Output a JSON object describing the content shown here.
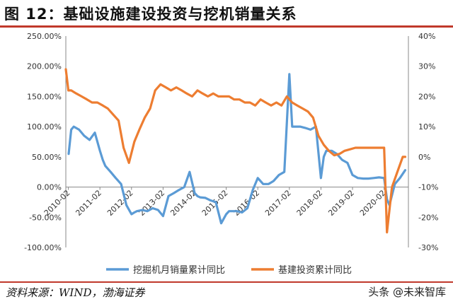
{
  "header": {
    "title": "图 12：基础设施建设投资与挖机销量关系"
  },
  "footer": {
    "source": "资料来源：WIND，渤海证券",
    "watermark": "头条 @未来智库"
  },
  "colors": {
    "accent": "#c0392b",
    "excavator": "#5b9bd5",
    "infra": "#ed7d31",
    "grid": "#d9d9d9"
  },
  "chart_data": {
    "type": "line",
    "title": "",
    "x_ticks": [
      "2010-02",
      "2011-02",
      "2012-02",
      "2013-02",
      "2014-02",
      "2015-02",
      "2016-02",
      "2017-02",
      "2018-02",
      "2019-02",
      "2020-02"
    ],
    "y_left": {
      "ticks": [
        "250.00%",
        "200.00%",
        "150.00%",
        "100.00%",
        "50.00%",
        "0.00%",
        "-50.00%",
        "-100.00%"
      ],
      "range": [
        -100,
        250
      ]
    },
    "y_right": {
      "ticks": [
        "40%",
        "30%",
        "20%",
        "10%",
        "0%",
        "-10%",
        "-20%",
        "-30%"
      ],
      "range": [
        -30,
        40
      ]
    },
    "legend_position": "bottom",
    "series": [
      {
        "name": "挖掘机月销量累计同比",
        "axis": "left",
        "x": [
          2010.09,
          2010.17,
          2010.25,
          2010.42,
          2010.58,
          2010.75,
          2010.92,
          2011.08,
          2011.17,
          2011.25,
          2011.42,
          2011.58,
          2011.75,
          2011.92,
          2012.08,
          2012.17,
          2012.25,
          2012.42,
          2012.58,
          2012.75,
          2012.92,
          2013.08,
          2013.25,
          2013.42,
          2013.58,
          2013.75,
          2013.92,
          2014.08,
          2014.17,
          2014.25,
          2014.42,
          2014.58,
          2014.75,
          2014.92,
          2015.08,
          2015.17,
          2015.25,
          2015.42,
          2015.58,
          2015.75,
          2015.92,
          2016.08,
          2016.25,
          2016.42,
          2016.58,
          2016.75,
          2016.92,
          2017.08,
          2017.17,
          2017.25,
          2017.42,
          2017.58,
          2017.75,
          2017.92,
          2018.08,
          2018.17,
          2018.25,
          2018.42,
          2018.58,
          2018.75,
          2018.92,
          2019.08,
          2019.25,
          2019.42,
          2019.58,
          2019.75,
          2019.92,
          2020.08,
          2020.17,
          2020.25,
          2020.42,
          2020.58,
          2020.75
        ],
        "y": [
          55,
          95,
          100,
          95,
          85,
          78,
          90,
          60,
          45,
          35,
          25,
          15,
          5,
          -30,
          -45,
          -42,
          -40,
          -38,
          -40,
          -35,
          -38,
          -48,
          -15,
          -10,
          -5,
          0,
          25,
          -10,
          -15,
          -17,
          -18,
          -22,
          -25,
          -60,
          -45,
          -40,
          -40,
          -40,
          -42,
          -35,
          -5,
          15,
          5,
          5,
          10,
          20,
          25,
          187,
          100,
          100,
          100,
          98,
          95,
          100,
          15,
          50,
          60,
          60,
          55,
          45,
          40,
          20,
          15,
          14,
          14,
          15,
          16,
          15,
          -20,
          -30,
          5,
          15,
          28
        ]
      },
      {
        "name": "基建投资累计同比",
        "axis": "right",
        "x": [
          2010.0,
          2010.08,
          2010.17,
          2010.33,
          2010.5,
          2010.67,
          2010.83,
          2011.0,
          2011.17,
          2011.33,
          2011.5,
          2011.67,
          2011.83,
          2012.0,
          2012.17,
          2012.33,
          2012.5,
          2012.67,
          2012.83,
          2013.0,
          2013.17,
          2013.33,
          2013.5,
          2013.67,
          2013.83,
          2014.0,
          2014.17,
          2014.33,
          2014.5,
          2014.67,
          2014.83,
          2015.0,
          2015.17,
          2015.33,
          2015.5,
          2015.67,
          2015.83,
          2016.0,
          2016.17,
          2016.33,
          2016.5,
          2016.67,
          2016.83,
          2017.0,
          2017.17,
          2017.33,
          2017.5,
          2017.67,
          2017.83,
          2018.0,
          2018.17,
          2018.33,
          2018.5,
          2018.67,
          2018.83,
          2019.0,
          2019.17,
          2019.33,
          2019.5,
          2019.67,
          2019.83,
          2020.0,
          2020.08,
          2020.17,
          2020.33,
          2020.5,
          2020.67,
          2020.75
        ],
        "y": [
          29,
          22,
          22,
          21,
          20,
          19,
          18,
          18,
          17,
          16,
          14,
          12,
          3,
          -2,
          5,
          9,
          13,
          16,
          22,
          24,
          23,
          22,
          23,
          22,
          21,
          20,
          22,
          21,
          20,
          21,
          20,
          20,
          20,
          19,
          19,
          18,
          18,
          17,
          19,
          18,
          17,
          18,
          17,
          20,
          18,
          17,
          16,
          15,
          13,
          7,
          4,
          2,
          0.5,
          1,
          2,
          2.5,
          3,
          3,
          3,
          3,
          3,
          3,
          3,
          -25,
          -10,
          -5,
          0,
          0
        ]
      }
    ]
  }
}
